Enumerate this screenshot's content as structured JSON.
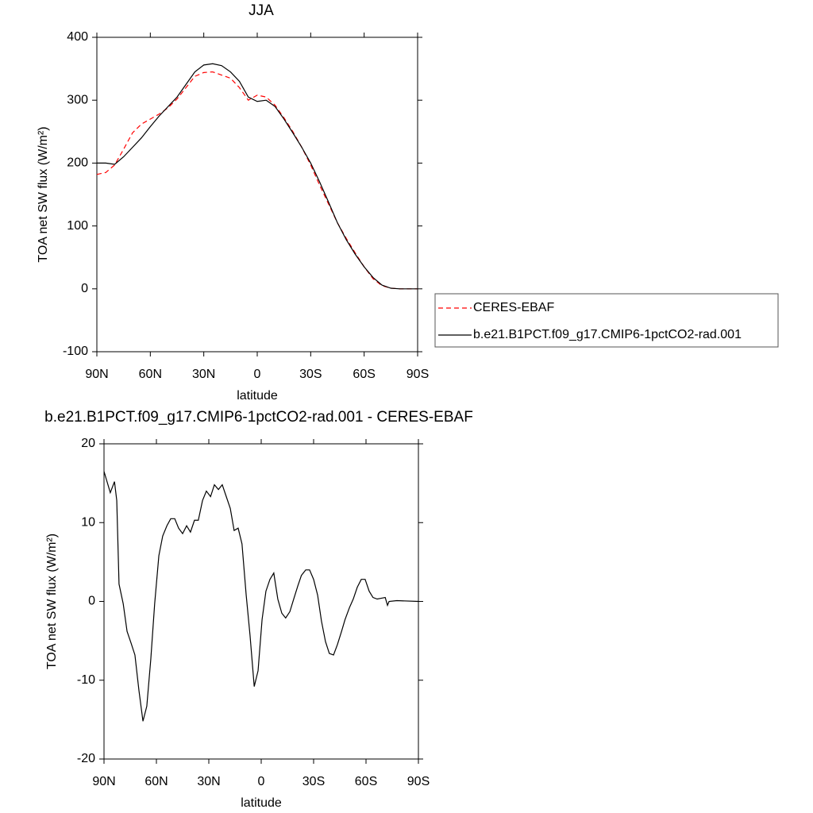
{
  "chart_data": [
    {
      "type": "line",
      "title": "JJA",
      "xlabel": "latitude",
      "ylabel": "TOA net SW flux (W/m²)",
      "x": [
        90,
        85,
        80,
        75,
        70,
        65,
        60,
        55,
        50,
        45,
        40,
        35,
        30,
        25,
        20,
        15,
        10,
        5,
        0,
        -5,
        -10,
        -15,
        -20,
        -25,
        -30,
        -35,
        -40,
        -45,
        -50,
        -55,
        -60,
        -65,
        -70,
        -75,
        -80,
        -85,
        -90
      ],
      "series": [
        {
          "name": "CERES-EBAF",
          "color": "#ff0000",
          "dashed": true,
          "values": [
            182,
            185,
            197,
            222,
            248,
            262,
            270,
            278,
            288,
            302,
            320,
            338,
            344,
            345,
            340,
            335,
            320,
            300,
            308,
            305,
            292,
            272,
            250,
            225,
            197,
            165,
            135,
            105,
            80,
            57,
            35,
            16,
            5,
            1,
            0,
            0,
            0
          ]
        },
        {
          "name": "b.e21.B1PCT.f09_g17.CMIP6-1pctCO2-rad.001",
          "color": "#000000",
          "dashed": false,
          "values": [
            200,
            200,
            198,
            210,
            225,
            240,
            258,
            275,
            290,
            305,
            325,
            345,
            356,
            358,
            355,
            345,
            330,
            305,
            298,
            300,
            290,
            270,
            248,
            225,
            200,
            170,
            138,
            105,
            78,
            55,
            35,
            18,
            6,
            1,
            0,
            0,
            0
          ]
        }
      ],
      "xlim": [
        90,
        -90
      ],
      "xticks": [
        {
          "value": 90,
          "label": "90N"
        },
        {
          "value": 60,
          "label": "60N"
        },
        {
          "value": 30,
          "label": "30N"
        },
        0,
        {
          "value": -30,
          "label": "30S"
        },
        {
          "value": -60,
          "label": "60S"
        },
        {
          "value": -90,
          "label": "90S"
        }
      ],
      "ylim": [
        -100,
        400
      ],
      "yticks": [
        -100,
        0,
        100,
        200,
        300,
        400
      ],
      "legend": "right"
    },
    {
      "type": "line",
      "title": "b.e21.B1PCT.f09_g17.CMIP6-1pctCO2-rad.001 - CERES-EBAF",
      "xlabel": "latitude",
      "ylabel": "TOA net SW flux (W/m²)",
      "x": [
        90,
        86.4,
        84,
        82.7,
        81.4,
        79,
        76.8,
        74.5,
        72.3,
        70,
        67.7,
        65.5,
        63.2,
        61,
        58.6,
        56.4,
        54,
        51.8,
        49.5,
        47.3,
        45,
        42.7,
        40.5,
        38.2,
        36,
        33.6,
        31.4,
        29,
        26.8,
        24.5,
        22.3,
        20,
        17.7,
        15.5,
        13.2,
        11,
        8.6,
        6.4,
        4,
        1.8,
        -0.5,
        -2.7,
        -5,
        -7.2,
        -9.5,
        -11.8,
        -14,
        -16.4,
        -18.6,
        -21,
        -23,
        -25.5,
        -27.7,
        -30,
        -32.3,
        -34.5,
        -36.8,
        -39,
        -41.4,
        -43.6,
        -46,
        -48,
        -50.5,
        -52.7,
        -55,
        -57.3,
        -59.5,
        -61.8,
        -64,
        -66.4,
        -68.6,
        -71,
        -72.3,
        -73.2,
        -77.7,
        -90
      ],
      "values": [
        16.5,
        13.8,
        15.2,
        12.8,
        2.2,
        -0.3,
        -3.8,
        -5.3,
        -6.8,
        -11.3,
        -15.2,
        -13.3,
        -7.3,
        -0.3,
        5.8,
        8.3,
        9.6,
        10.5,
        10.5,
        9.3,
        8.6,
        9.6,
        8.8,
        10.3,
        10.3,
        12.8,
        14,
        13.3,
        14.8,
        14.2,
        14.8,
        13.3,
        11.8,
        9,
        9.3,
        7.3,
        0.8,
        -4.3,
        -10.8,
        -8.8,
        -2.3,
        1.3,
        2.8,
        3.6,
        0.3,
        -1.5,
        -2.1,
        -1.3,
        0.3,
        2,
        3.3,
        4,
        4,
        2.8,
        0.8,
        -2.5,
        -5.1,
        -6.6,
        -6.8,
        -5.5,
        -3.8,
        -2.3,
        -0.8,
        0.3,
        1.8,
        2.8,
        2.8,
        1.3,
        0.5,
        0.3,
        0.4,
        0.5,
        -0.5,
        0,
        0.1,
        0
      ],
      "color": "#000000",
      "xlim": [
        90,
        -90
      ],
      "xticks": [
        {
          "value": 90,
          "label": "90N"
        },
        {
          "value": 60,
          "label": "60N"
        },
        {
          "value": 30,
          "label": "30N"
        },
        0,
        {
          "value": -30,
          "label": "30S"
        },
        {
          "value": -60,
          "label": "60S"
        },
        {
          "value": -90,
          "label": "90S"
        }
      ],
      "ylim": [
        -20,
        20
      ],
      "yticks": [
        -20,
        -10,
        0,
        10,
        20
      ]
    }
  ]
}
